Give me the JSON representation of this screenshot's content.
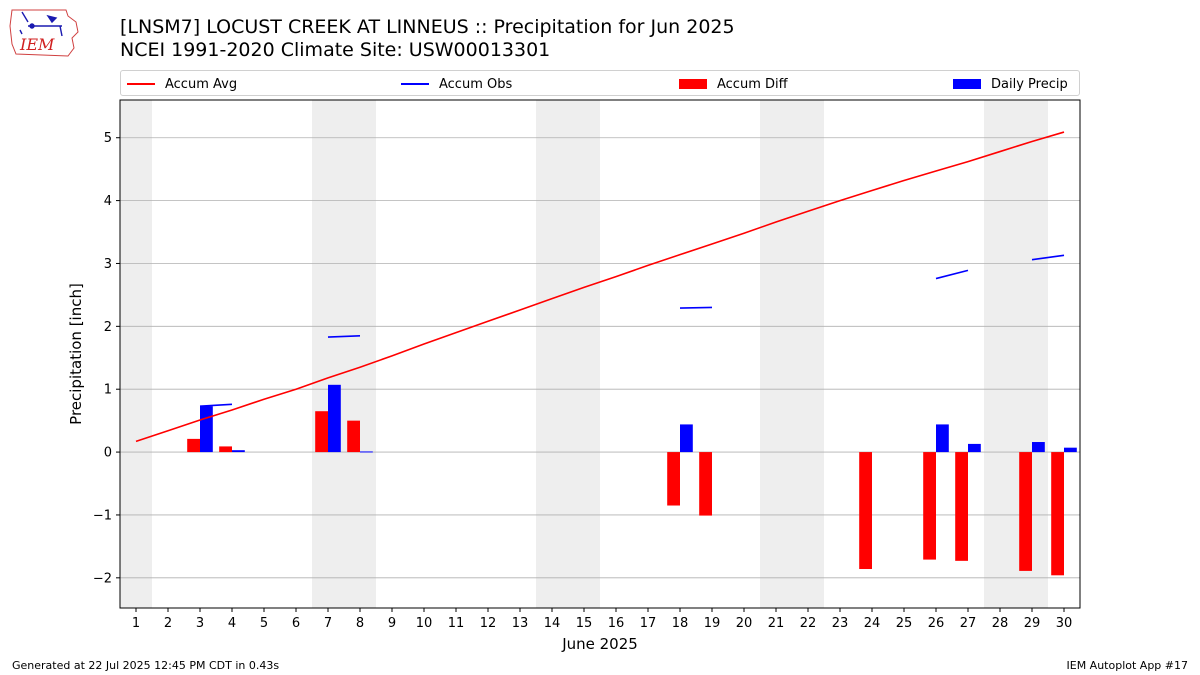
{
  "header": {
    "title_line1": "[LNSM7] LOCUST CREEK  AT LINNEUS :: Precipitation for Jun 2025",
    "title_line2": "NCEI 1991-2020 Climate Site: USW00013301",
    "logo_text": "IEM"
  },
  "footer": {
    "left": "Generated at 22 Jul 2025 12:45 PM CDT in 0.43s",
    "right": "IEM Autoplot App #17"
  },
  "legend": [
    {
      "label": "Accum Avg",
      "kind": "line",
      "color": "#ff0000"
    },
    {
      "label": "Accum Obs",
      "kind": "line",
      "color": "#0000ff"
    },
    {
      "label": "Accum Diff",
      "kind": "patch",
      "color": "#ff0000"
    },
    {
      "label": "Daily Precip",
      "kind": "patch",
      "color": "#0000ff"
    }
  ],
  "chart_data": {
    "type": "bar",
    "xlabel": "June 2025",
    "ylabel": "Precipitation [inch]",
    "xlim": [
      0.5,
      30.5
    ],
    "ylim": [
      -2.48,
      5.6
    ],
    "x_ticks": [
      1,
      2,
      3,
      4,
      5,
      6,
      7,
      8,
      9,
      10,
      11,
      12,
      13,
      14,
      15,
      16,
      17,
      18,
      19,
      20,
      21,
      22,
      23,
      24,
      25,
      26,
      27,
      28,
      29,
      30
    ],
    "y_ticks": [
      -2,
      -1,
      0,
      1,
      2,
      3,
      4,
      5
    ],
    "grid": "y",
    "legend_placement": "top",
    "weekend_shading": [
      [
        0.5,
        1.5
      ],
      [
        6.5,
        8.5
      ],
      [
        13.5,
        15.5
      ],
      [
        20.5,
        22.5
      ],
      [
        27.5,
        29.5
      ]
    ],
    "colors": {
      "avg": "#ff0000",
      "obs": "#0000ff",
      "diff": "#ff0000",
      "daily": "#0000ff",
      "shade": "#eeeeee",
      "grid": "#b0b0b0"
    },
    "accum_avg": {
      "x": [
        1,
        2,
        3,
        4,
        5,
        6,
        7,
        8,
        9,
        10,
        11,
        12,
        13,
        14,
        15,
        16,
        17,
        18,
        19,
        20,
        21,
        22,
        23,
        24,
        25,
        26,
        27,
        28,
        29,
        30
      ],
      "values": [
        0.17,
        0.34,
        0.51,
        0.67,
        0.84,
        1.0,
        1.18,
        1.35,
        1.53,
        1.72,
        1.9,
        2.08,
        2.26,
        2.44,
        2.62,
        2.79,
        2.97,
        3.14,
        3.31,
        3.48,
        3.66,
        3.83,
        4.0,
        4.16,
        4.32,
        4.47,
        4.62,
        4.78,
        4.94,
        5.09
      ]
    },
    "accum_obs_segments": [
      {
        "x": [
          3,
          4
        ],
        "values": [
          0.73,
          0.76
        ]
      },
      {
        "x": [
          7,
          8
        ],
        "values": [
          1.83,
          1.85
        ]
      },
      {
        "x": [
          18,
          19
        ],
        "values": [
          2.29,
          2.3
        ]
      },
      {
        "x": [
          26,
          27
        ],
        "values": [
          2.76,
          2.89
        ]
      },
      {
        "x": [
          29,
          30
        ],
        "values": [
          3.06,
          3.13
        ]
      }
    ],
    "accum_diff": {
      "x": [
        3,
        4,
        7,
        8,
        18,
        19,
        24,
        26,
        27,
        29,
        30
      ],
      "values": [
        0.21,
        0.09,
        0.65,
        0.5,
        -0.85,
        -1.01,
        -1.86,
        -1.71,
        -1.73,
        -1.89,
        -1.96
      ]
    },
    "daily_precip": {
      "x": [
        3,
        4,
        7,
        8,
        18,
        26,
        27,
        29,
        30
      ],
      "values": [
        0.73,
        0.03,
        1.07,
        0.01,
        0.44,
        0.44,
        0.13,
        0.16,
        0.07
      ]
    }
  }
}
